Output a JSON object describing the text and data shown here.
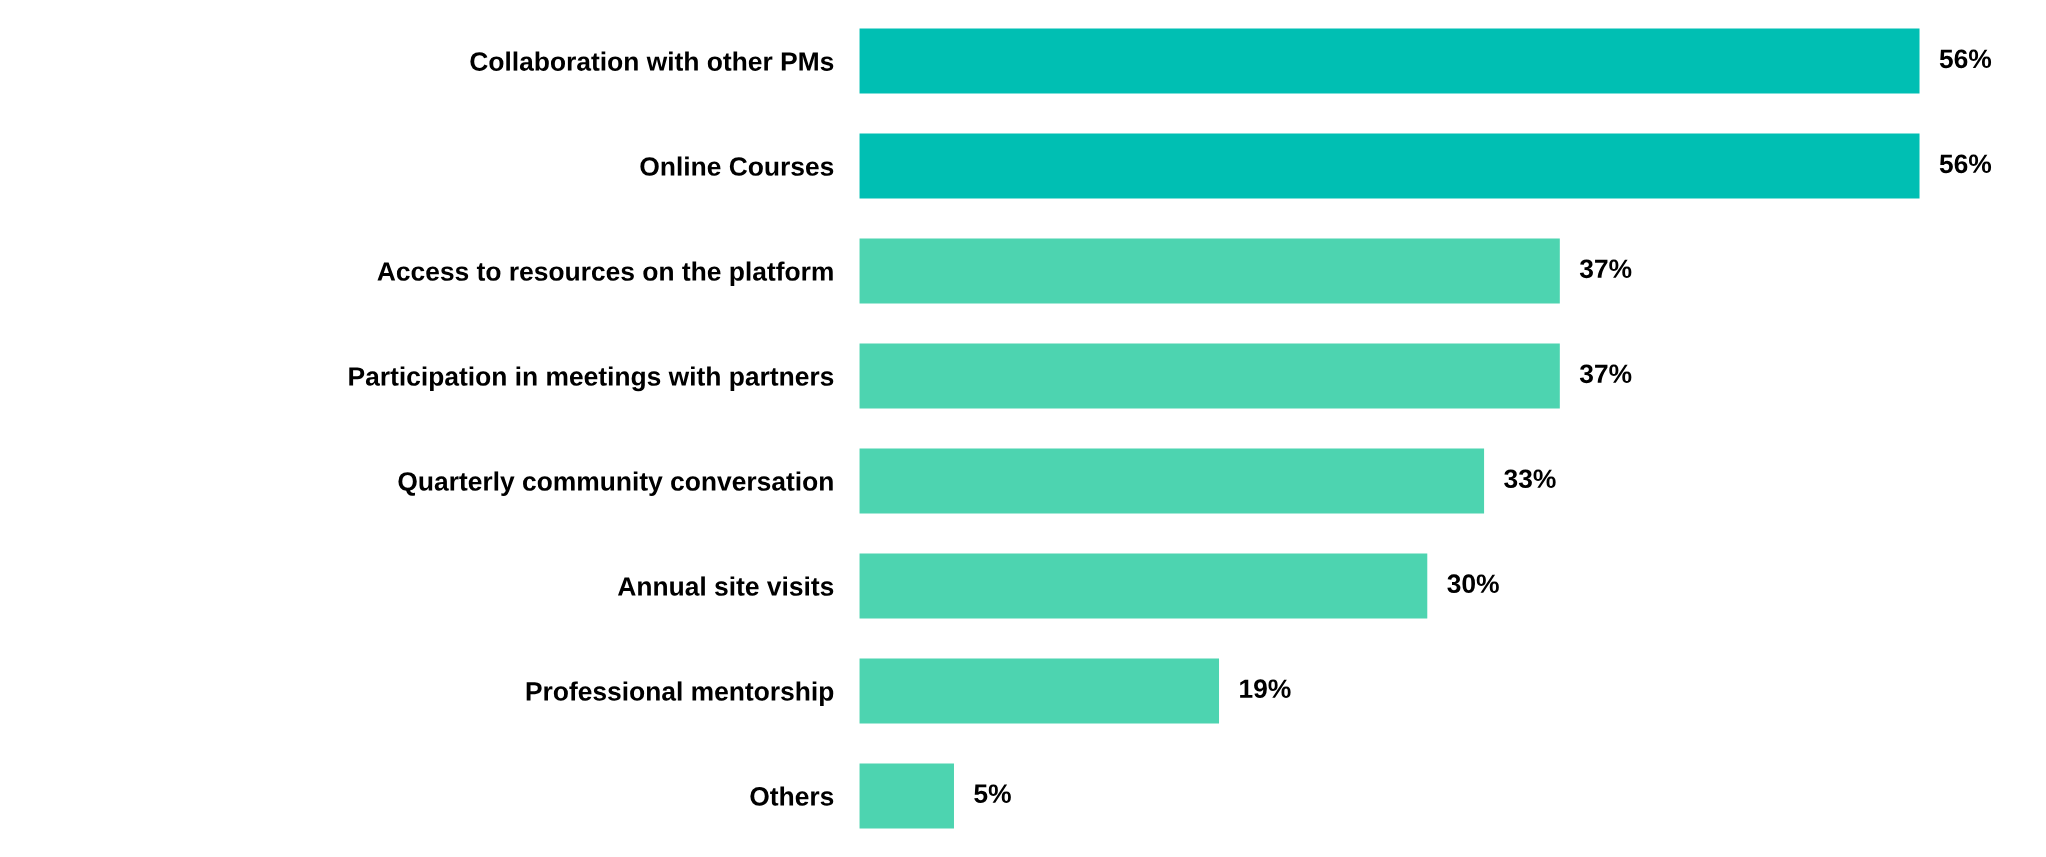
{
  "chart_data": {
    "type": "bar",
    "orientation": "horizontal",
    "categories": [
      "Collaboration with other PMs",
      "Online Courses",
      "Access to resources on the platform",
      "Participation in meetings with partners",
      "Quarterly community conversation",
      "Annual site visits",
      "Professional mentorship",
      "Others"
    ],
    "values": [
      56,
      56,
      37,
      37,
      33,
      30,
      19,
      5
    ],
    "value_labels": [
      "56%",
      "56%",
      "37%",
      "37%",
      "33%",
      "30%",
      "19%",
      "5%"
    ],
    "colors": [
      "#00bfb3",
      "#00bfb3",
      "#4dd4b0",
      "#4dd4b0",
      "#4dd4b0",
      "#4dd4b0",
      "#4dd4b0",
      "#4dd4b0"
    ],
    "tick_labels": "y",
    "grid": false,
    "legend": false
  }
}
